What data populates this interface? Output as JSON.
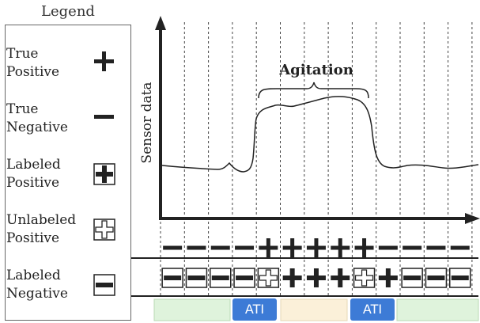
{
  "legend": {
    "title": "Legend",
    "items": [
      {
        "label_line1": "True",
        "label_line2": "Positive",
        "icon": "plus-icon"
      },
      {
        "label_line1": "True",
        "label_line2": "Negative",
        "icon": "minus-icon"
      },
      {
        "label_line1": "Labeled",
        "label_line2": "Positive",
        "icon": "labeled-plus-icon"
      },
      {
        "label_line1": "Unlabeled",
        "label_line2": "Positive",
        "icon": "unlabeled-plus-icon"
      },
      {
        "label_line1": "Labeled",
        "label_line2": "Negative",
        "icon": "labeled-minus-icon"
      }
    ]
  },
  "plot": {
    "ylabel": "Sensor data",
    "agitation_label": "Agitation"
  },
  "rows": {
    "true_labels": [
      "-",
      "-",
      "-",
      "-",
      "+",
      "+",
      "+",
      "+",
      "+",
      "-",
      "-",
      "-",
      "-"
    ],
    "observed_labels": [
      "L-",
      "L-",
      "L-",
      "L-",
      "U+",
      "L+",
      "L+",
      "L+",
      "U+",
      "L+",
      "L-",
      "L-",
      "L-"
    ]
  },
  "timeline": {
    "segments": [
      {
        "kind": "context",
        "color": "#dff3dc"
      },
      {
        "kind": "ati",
        "label": "ATI",
        "color": "#3d7bd6"
      },
      {
        "kind": "agitation",
        "color": "#fbf0d9"
      },
      {
        "kind": "ati",
        "label": "ATI",
        "color": "#3d7bd6"
      },
      {
        "kind": "context",
        "color": "#dff3dc"
      }
    ]
  }
}
